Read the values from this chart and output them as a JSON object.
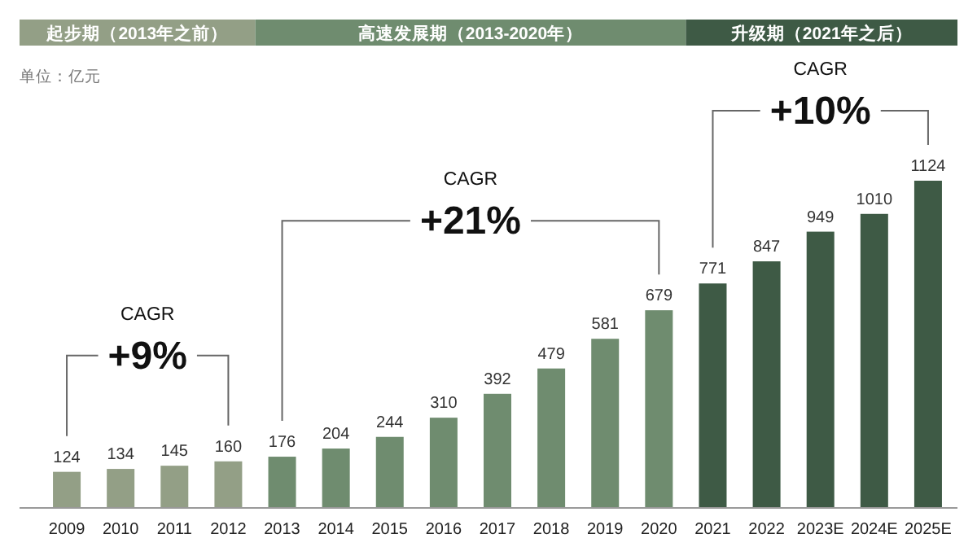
{
  "chart_data": {
    "type": "bar",
    "categories": [
      "2009",
      "2010",
      "2011",
      "2012",
      "2013",
      "2014",
      "2015",
      "2016",
      "2017",
      "2018",
      "2019",
      "2020",
      "2021",
      "2022",
      "2023E",
      "2024E",
      "2025E"
    ],
    "values": [
      124,
      134,
      145,
      160,
      176,
      204,
      244,
      310,
      392,
      479,
      581,
      679,
      771,
      847,
      949,
      1010,
      1124
    ],
    "colors": [
      "#939f86",
      "#939f86",
      "#939f86",
      "#939f86",
      "#6f8c6f",
      "#6f8c6f",
      "#6f8c6f",
      "#6f8c6f",
      "#6f8c6f",
      "#6f8c6f",
      "#6f8c6f",
      "#6f8c6f",
      "#3e5a45",
      "#3e5a45",
      "#3e5a45",
      "#3e5a45",
      "#3e5a45"
    ],
    "data_labels": true,
    "annotations": [
      "起步期（2013年之前）",
      "高速发展期（2013-2020年）",
      "升级期（2021年之后）",
      "单位：亿元",
      "CAGR",
      "+9%",
      "CAGR",
      "+21%",
      "CAGR",
      "+10%"
    ]
  }
}
